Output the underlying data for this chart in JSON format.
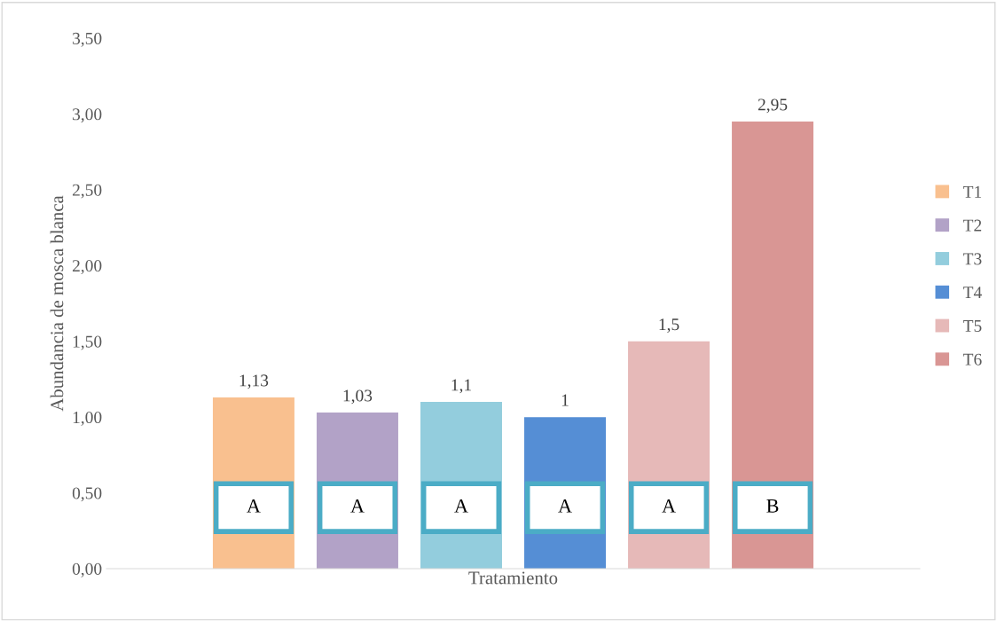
{
  "chart_data": {
    "type": "bar",
    "xlabel": "Tratamiento",
    "ylabel": "Abundancia de mosca blanca",
    "categories": [
      null
    ],
    "series": [
      {
        "name": "T1",
        "color": "#f9c08f",
        "values": [
          1.13
        ],
        "value_labels": [
          "1,13"
        ]
      },
      {
        "name": "T2",
        "color": "#b2a2c7",
        "values": [
          1.03
        ],
        "value_labels": [
          "1,03"
        ]
      },
      {
        "name": "T3",
        "color": "#93cddd",
        "values": [
          1.1
        ],
        "value_labels": [
          "1,1"
        ]
      },
      {
        "name": "T4",
        "color": "#558ed5",
        "values": [
          1
        ],
        "value_labels": [
          "1"
        ]
      },
      {
        "name": "T5",
        "color": "#e6b9b8",
        "values": [
          1.5
        ],
        "value_labels": [
          "1,5"
        ]
      },
      {
        "name": "T6",
        "color": "#d99694",
        "values": [
          2.95
        ],
        "value_labels": [
          "2,95"
        ]
      }
    ],
    "ylim": [
      0,
      3.5
    ],
    "yticks": [
      {
        "value": 0,
        "label": "0,00"
      },
      {
        "value": 0.5,
        "label": "0,50"
      },
      {
        "value": 1,
        "label": "1,00"
      },
      {
        "value": 1.5,
        "label": "1,50"
      },
      {
        "value": 2,
        "label": "2,00"
      },
      {
        "value": 2.5,
        "label": "2,50"
      },
      {
        "value": 3,
        "label": "3,00"
      },
      {
        "value": 3.5,
        "label": "3,50"
      }
    ],
    "annotations": [
      "A",
      "A",
      "A",
      "A",
      "A",
      "B"
    ],
    "grid": false,
    "legend": "right",
    "tick_labels": "y"
  }
}
